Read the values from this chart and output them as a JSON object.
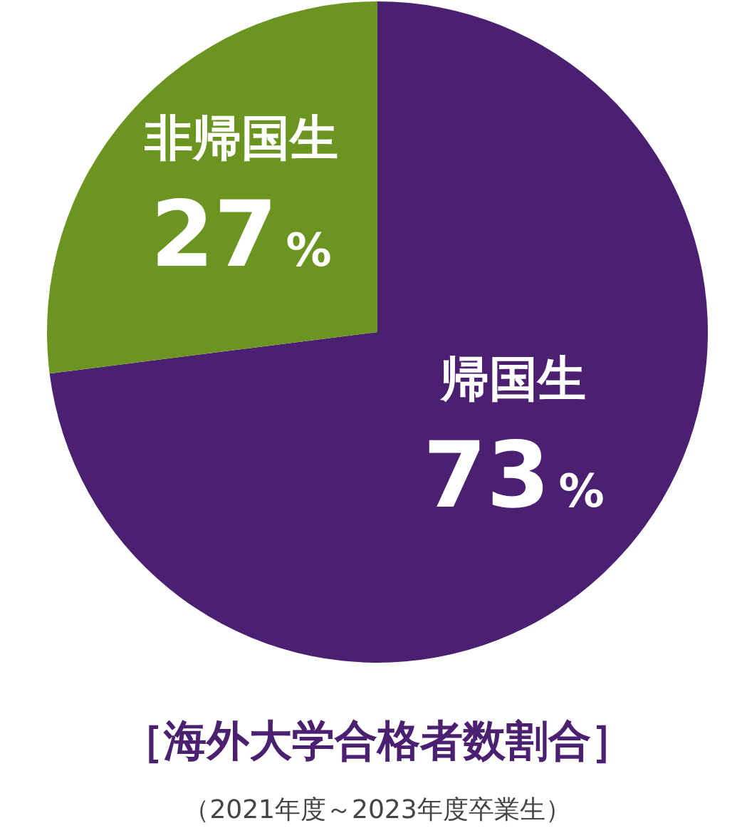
{
  "chart_data": {
    "type": "pie",
    "title": "［海外大学合格者数割合］",
    "subtitle": "（2021年度～2023年度卒業生）",
    "categories": [
      "帰国生",
      "非帰国生"
    ],
    "values": [
      73,
      27
    ],
    "colors": [
      "#4b2070",
      "#6b9520"
    ],
    "value_labels": [
      "73%",
      "27%"
    ]
  }
}
